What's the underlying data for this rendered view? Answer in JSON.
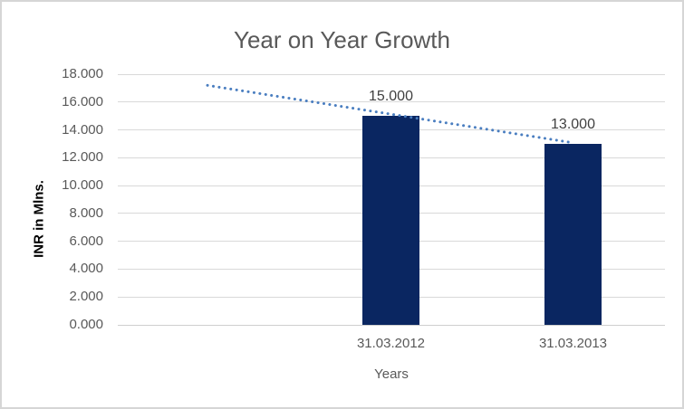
{
  "chart_data": {
    "type": "bar",
    "title": "Year on Year Growth",
    "categories": [
      "31.03.2012",
      "31.03.2013"
    ],
    "values": [
      15000,
      13000
    ],
    "value_labels": [
      "15.000",
      "13.000"
    ],
    "xlabel": "Years",
    "ylabel": "INR in Mlns.",
    "ylim": [
      0,
      18000
    ],
    "ytick_step": 2000,
    "ytick_labels": [
      "0.000",
      "2.000",
      "4.000",
      "6.000",
      "8.000",
      "10.000",
      "12.000",
      "14.000",
      "16.000",
      "18.000"
    ],
    "grid": true,
    "legend": false,
    "trendline": {
      "style": "dotted",
      "start_value": 17200,
      "end_value": 13100
    }
  },
  "colors": {
    "bar": "#0a2661",
    "trendline": "#4a7ec0",
    "gridline": "#d9d9d9",
    "axis_line": "#cfcfcf",
    "title": "#595959",
    "tick_label": "#595959",
    "data_label": "#404040",
    "axis_title": "#000000",
    "frame_border": "#d6d6d6"
  }
}
